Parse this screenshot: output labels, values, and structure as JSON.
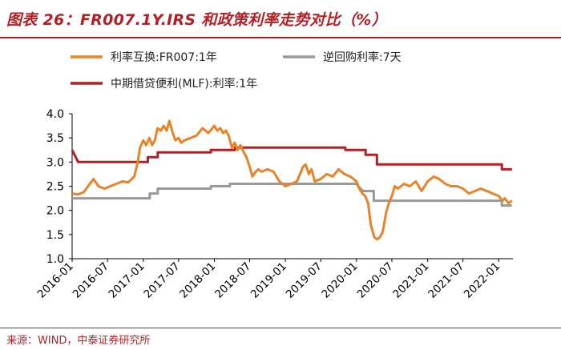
{
  "title": "图表 26：FR007.1Y.IRS 和政策利率走势对比（%）",
  "source": "来源：WIND，中泰证券研究所",
  "chart_data": {
    "type": "line",
    "x_type": "date",
    "xlim": [
      "2016-01-01",
      "2022-03-15"
    ],
    "ylim": [
      1.0,
      4.0
    ],
    "y_ticks": [
      "1.0",
      "1.5",
      "2.0",
      "2.5",
      "3.0",
      "3.5",
      "4.0"
    ],
    "x_ticks": [
      "2016-01",
      "2016-07",
      "2017-01",
      "2017-07",
      "2018-01",
      "2018-07",
      "2019-01",
      "2019-07",
      "2020-01",
      "2020-07",
      "2021-01",
      "2021-07",
      "2022-01"
    ],
    "grid": false,
    "legend_position": "top",
    "series": [
      {
        "name": "利率互换:FR007:1年",
        "color": "#e8832a",
        "points": [
          [
            "2016-01-01",
            2.35
          ],
          [
            "2016-02-01",
            2.33
          ],
          [
            "2016-03-01",
            2.38
          ],
          [
            "2016-04-01",
            2.55
          ],
          [
            "2016-04-20",
            2.65
          ],
          [
            "2016-05-15",
            2.5
          ],
          [
            "2016-06-15",
            2.45
          ],
          [
            "2016-07-15",
            2.5
          ],
          [
            "2016-08-15",
            2.55
          ],
          [
            "2016-09-15",
            2.6
          ],
          [
            "2016-10-15",
            2.58
          ],
          [
            "2016-11-15",
            2.7
          ],
          [
            "2016-12-01",
            2.95
          ],
          [
            "2016-12-15",
            3.3
          ],
          [
            "2017-01-01",
            3.45
          ],
          [
            "2017-01-15",
            3.35
          ],
          [
            "2017-02-01",
            3.5
          ],
          [
            "2017-02-15",
            3.35
          ],
          [
            "2017-03-01",
            3.45
          ],
          [
            "2017-03-15",
            3.7
          ],
          [
            "2017-04-01",
            3.65
          ],
          [
            "2017-04-15",
            3.75
          ],
          [
            "2017-05-01",
            3.65
          ],
          [
            "2017-05-15",
            3.85
          ],
          [
            "2017-06-01",
            3.6
          ],
          [
            "2017-06-15",
            3.45
          ],
          [
            "2017-07-01",
            3.5
          ],
          [
            "2017-07-15",
            3.4
          ],
          [
            "2017-08-01",
            3.45
          ],
          [
            "2017-09-01",
            3.5
          ],
          [
            "2017-10-01",
            3.55
          ],
          [
            "2017-11-01",
            3.7
          ],
          [
            "2017-12-01",
            3.6
          ],
          [
            "2018-01-01",
            3.75
          ],
          [
            "2018-01-15",
            3.65
          ],
          [
            "2018-02-01",
            3.7
          ],
          [
            "2018-02-15",
            3.6
          ],
          [
            "2018-03-01",
            3.65
          ],
          [
            "2018-03-15",
            3.55
          ],
          [
            "2018-04-01",
            3.3
          ],
          [
            "2018-04-15",
            3.4
          ],
          [
            "2018-05-01",
            3.25
          ],
          [
            "2018-05-15",
            3.35
          ],
          [
            "2018-06-01",
            3.2
          ],
          [
            "2018-06-15",
            3.1
          ],
          [
            "2018-07-01",
            2.9
          ],
          [
            "2018-07-15",
            2.7
          ],
          [
            "2018-08-01",
            2.8
          ],
          [
            "2018-08-15",
            2.85
          ],
          [
            "2018-09-01",
            2.8
          ],
          [
            "2018-10-01",
            2.85
          ],
          [
            "2018-11-01",
            2.8
          ],
          [
            "2018-12-01",
            2.6
          ],
          [
            "2019-01-01",
            2.5
          ],
          [
            "2019-02-01",
            2.55
          ],
          [
            "2019-03-01",
            2.6
          ],
          [
            "2019-04-01",
            2.9
          ],
          [
            "2019-04-15",
            2.95
          ],
          [
            "2019-05-01",
            2.75
          ],
          [
            "2019-05-15",
            2.85
          ],
          [
            "2019-06-01",
            2.6
          ],
          [
            "2019-07-01",
            2.65
          ],
          [
            "2019-08-01",
            2.75
          ],
          [
            "2019-09-01",
            2.7
          ],
          [
            "2019-10-01",
            2.85
          ],
          [
            "2019-11-01",
            2.75
          ],
          [
            "2019-12-01",
            2.7
          ],
          [
            "2020-01-01",
            2.6
          ],
          [
            "2020-01-15",
            2.45
          ],
          [
            "2020-02-01",
            2.35
          ],
          [
            "2020-02-15",
            2.3
          ],
          [
            "2020-03-01",
            2.15
          ],
          [
            "2020-03-15",
            1.7
          ],
          [
            "2020-04-01",
            1.45
          ],
          [
            "2020-04-15",
            1.4
          ],
          [
            "2020-05-01",
            1.45
          ],
          [
            "2020-05-15",
            1.55
          ],
          [
            "2020-06-01",
            1.95
          ],
          [
            "2020-06-15",
            2.15
          ],
          [
            "2020-07-01",
            2.3
          ],
          [
            "2020-07-15",
            2.5
          ],
          [
            "2020-08-01",
            2.45
          ],
          [
            "2020-09-01",
            2.55
          ],
          [
            "2020-10-01",
            2.5
          ],
          [
            "2020-11-01",
            2.6
          ],
          [
            "2020-12-01",
            2.4
          ],
          [
            "2021-01-01",
            2.6
          ],
          [
            "2021-02-01",
            2.7
          ],
          [
            "2021-03-01",
            2.65
          ],
          [
            "2021-04-01",
            2.55
          ],
          [
            "2021-05-01",
            2.5
          ],
          [
            "2021-06-01",
            2.5
          ],
          [
            "2021-07-01",
            2.45
          ],
          [
            "2021-08-01",
            2.35
          ],
          [
            "2021-09-01",
            2.4
          ],
          [
            "2021-10-01",
            2.45
          ],
          [
            "2021-11-01",
            2.4
          ],
          [
            "2021-12-01",
            2.35
          ],
          [
            "2022-01-01",
            2.3
          ],
          [
            "2022-01-20",
            2.2
          ],
          [
            "2022-02-01",
            2.25
          ],
          [
            "2022-02-20",
            2.15
          ],
          [
            "2022-03-10",
            2.2
          ]
        ]
      },
      {
        "name": "逆回购利率:7天",
        "color": "#999999",
        "points": [
          [
            "2016-01-01",
            2.25
          ],
          [
            "2017-02-03",
            2.25
          ],
          [
            "2017-02-03",
            2.35
          ],
          [
            "2017-03-16",
            2.35
          ],
          [
            "2017-03-16",
            2.45
          ],
          [
            "2017-12-14",
            2.45
          ],
          [
            "2017-12-14",
            2.5
          ],
          [
            "2018-03-22",
            2.5
          ],
          [
            "2018-03-22",
            2.55
          ],
          [
            "2019-12-31",
            2.55
          ],
          [
            "2020-02-03",
            2.4
          ],
          [
            "2020-03-30",
            2.4
          ],
          [
            "2020-03-30",
            2.2
          ],
          [
            "2022-01-17",
            2.2
          ],
          [
            "2022-01-17",
            2.1
          ],
          [
            "2022-03-10",
            2.1
          ]
        ]
      },
      {
        "name": "中期借贷便利(MLF):利率:1年",
        "color": "#b51f24",
        "points": [
          [
            "2016-01-01",
            3.25
          ],
          [
            "2016-02-01",
            3.0
          ],
          [
            "2017-01-24",
            3.0
          ],
          [
            "2017-01-24",
            3.1
          ],
          [
            "2017-03-16",
            3.1
          ],
          [
            "2017-03-16",
            3.2
          ],
          [
            "2017-12-14",
            3.2
          ],
          [
            "2017-12-14",
            3.25
          ],
          [
            "2018-04-17",
            3.25
          ],
          [
            "2018-04-17",
            3.3
          ],
          [
            "2019-11-05",
            3.3
          ],
          [
            "2019-11-05",
            3.25
          ],
          [
            "2020-02-17",
            3.25
          ],
          [
            "2020-02-17",
            3.15
          ],
          [
            "2020-04-15",
            3.15
          ],
          [
            "2020-04-15",
            2.95
          ],
          [
            "2022-01-17",
            2.95
          ],
          [
            "2022-01-17",
            2.85
          ],
          [
            "2022-03-10",
            2.85
          ]
        ]
      }
    ]
  }
}
